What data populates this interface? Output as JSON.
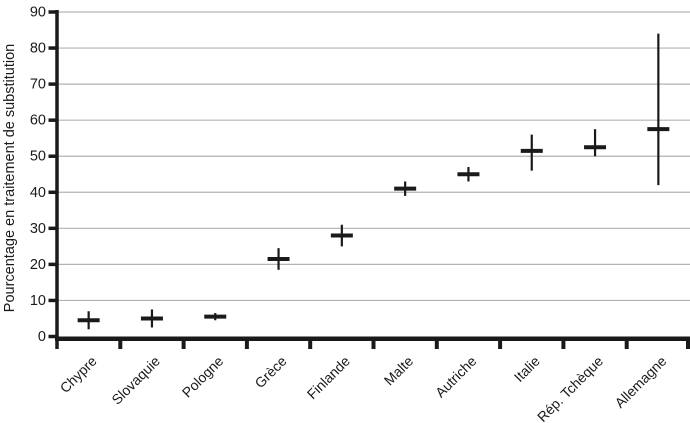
{
  "chart_data": {
    "type": "scatter",
    "subtype": "mean-with-confidence-interval",
    "title": "",
    "xlabel": "",
    "ylabel": "Pourcentage en traitement de substitution",
    "ylim": [
      0,
      90
    ],
    "yticks": [
      0,
      10,
      20,
      30,
      40,
      50,
      60,
      70,
      80,
      90
    ],
    "grid": true,
    "legend_position": "none",
    "categories": [
      "Chypre",
      "Slovaquie",
      "Pologne",
      "Grèce",
      "Finlande",
      "Malte",
      "Autriche",
      "Italie",
      "Rép. Tchèque",
      "Allemagne"
    ],
    "series": [
      {
        "name": "Pourcentage en traitement de substitution",
        "marker": "horizontal-bar-with-error-line",
        "points": [
          {
            "category": "Chypre",
            "value": 4.5,
            "ci_low": 2,
            "ci_high": 7
          },
          {
            "category": "Slovaquie",
            "value": 5,
            "ci_low": 2.5,
            "ci_high": 7.5
          },
          {
            "category": "Pologne",
            "value": 5.5,
            "ci_low": 4.5,
            "ci_high": 6.5
          },
          {
            "category": "Grèce",
            "value": 21.5,
            "ci_low": 18.5,
            "ci_high": 24.5
          },
          {
            "category": "Finlande",
            "value": 28,
            "ci_low": 25,
            "ci_high": 31
          },
          {
            "category": "Malte",
            "value": 41,
            "ci_low": 39,
            "ci_high": 43
          },
          {
            "category": "Autriche",
            "value": 45,
            "ci_low": 43,
            "ci_high": 47
          },
          {
            "category": "Italie",
            "value": 51.5,
            "ci_low": 46,
            "ci_high": 56
          },
          {
            "category": "Rép. Tchèque",
            "value": 52.5,
            "ci_low": 50,
            "ci_high": 57.5
          },
          {
            "category": "Allemagne",
            "value": 57.5,
            "ci_low": 42,
            "ci_high": 84
          }
        ]
      }
    ],
    "colors": {
      "marker": "#1a1a1a",
      "axis": "#1a1a1a",
      "text": "#1a1a1a",
      "gridline": "#b3b3b3",
      "background": "#ffffff"
    }
  }
}
